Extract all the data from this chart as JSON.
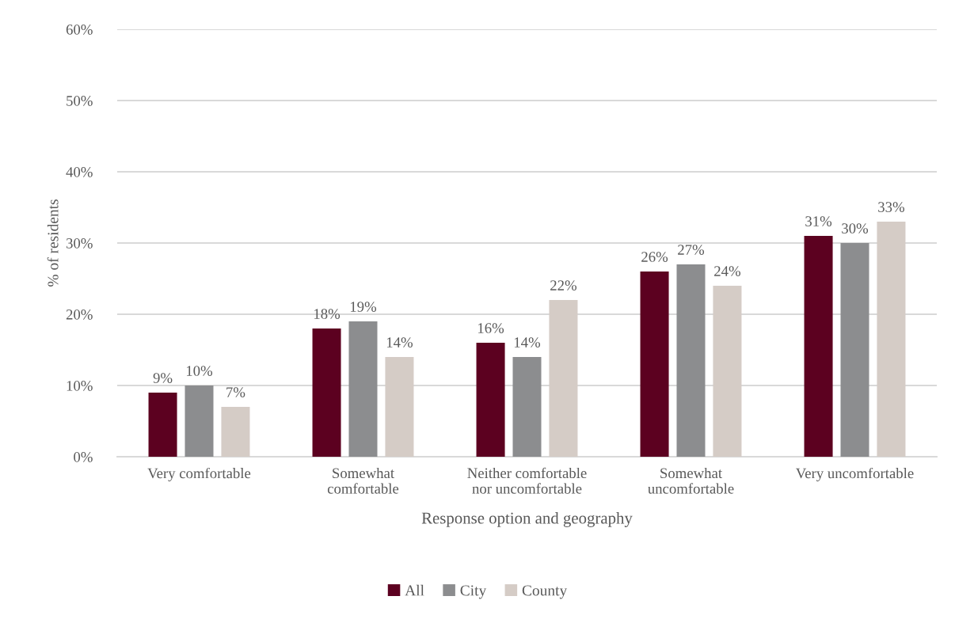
{
  "chart_data": {
    "type": "bar",
    "xlabel": "Response option and geography",
    "ylabel": "% of residents",
    "categories": [
      "Very comfortable",
      "Somewhat\ncomfortable",
      "Neither comfortable\nnor uncomfortable",
      "Somewhat\nuncomfortable",
      "Very uncomfortable"
    ],
    "series": [
      {
        "name": "All",
        "color": "#5c0120",
        "values": [
          9,
          18,
          16,
          26,
          31
        ],
        "value_labels": [
          "9%",
          "18%",
          "16%",
          "26%",
          "31%"
        ]
      },
      {
        "name": "City",
        "color": "#8c8d8f",
        "values": [
          10,
          19,
          14,
          27,
          30
        ],
        "value_labels": [
          "10%",
          "19%",
          "14%",
          "27%",
          "30%"
        ]
      },
      {
        "name": "County",
        "color": "#d5ccc6",
        "values": [
          7,
          14,
          22,
          24,
          33
        ],
        "value_labels": [
          "7%",
          "14%",
          "22%",
          "24%",
          "33%"
        ]
      }
    ],
    "ylim": [
      0,
      60
    ],
    "yticks": [
      {
        "value": 0,
        "label": "0%"
      },
      {
        "value": 10,
        "label": "10%"
      },
      {
        "value": 20,
        "label": "20%"
      },
      {
        "value": 30,
        "label": "30%"
      },
      {
        "value": 40,
        "label": "40%"
      },
      {
        "value": 50,
        "label": "50%"
      },
      {
        "value": 60,
        "label": "60%"
      }
    ],
    "grid": "y",
    "legend": "bottom"
  }
}
